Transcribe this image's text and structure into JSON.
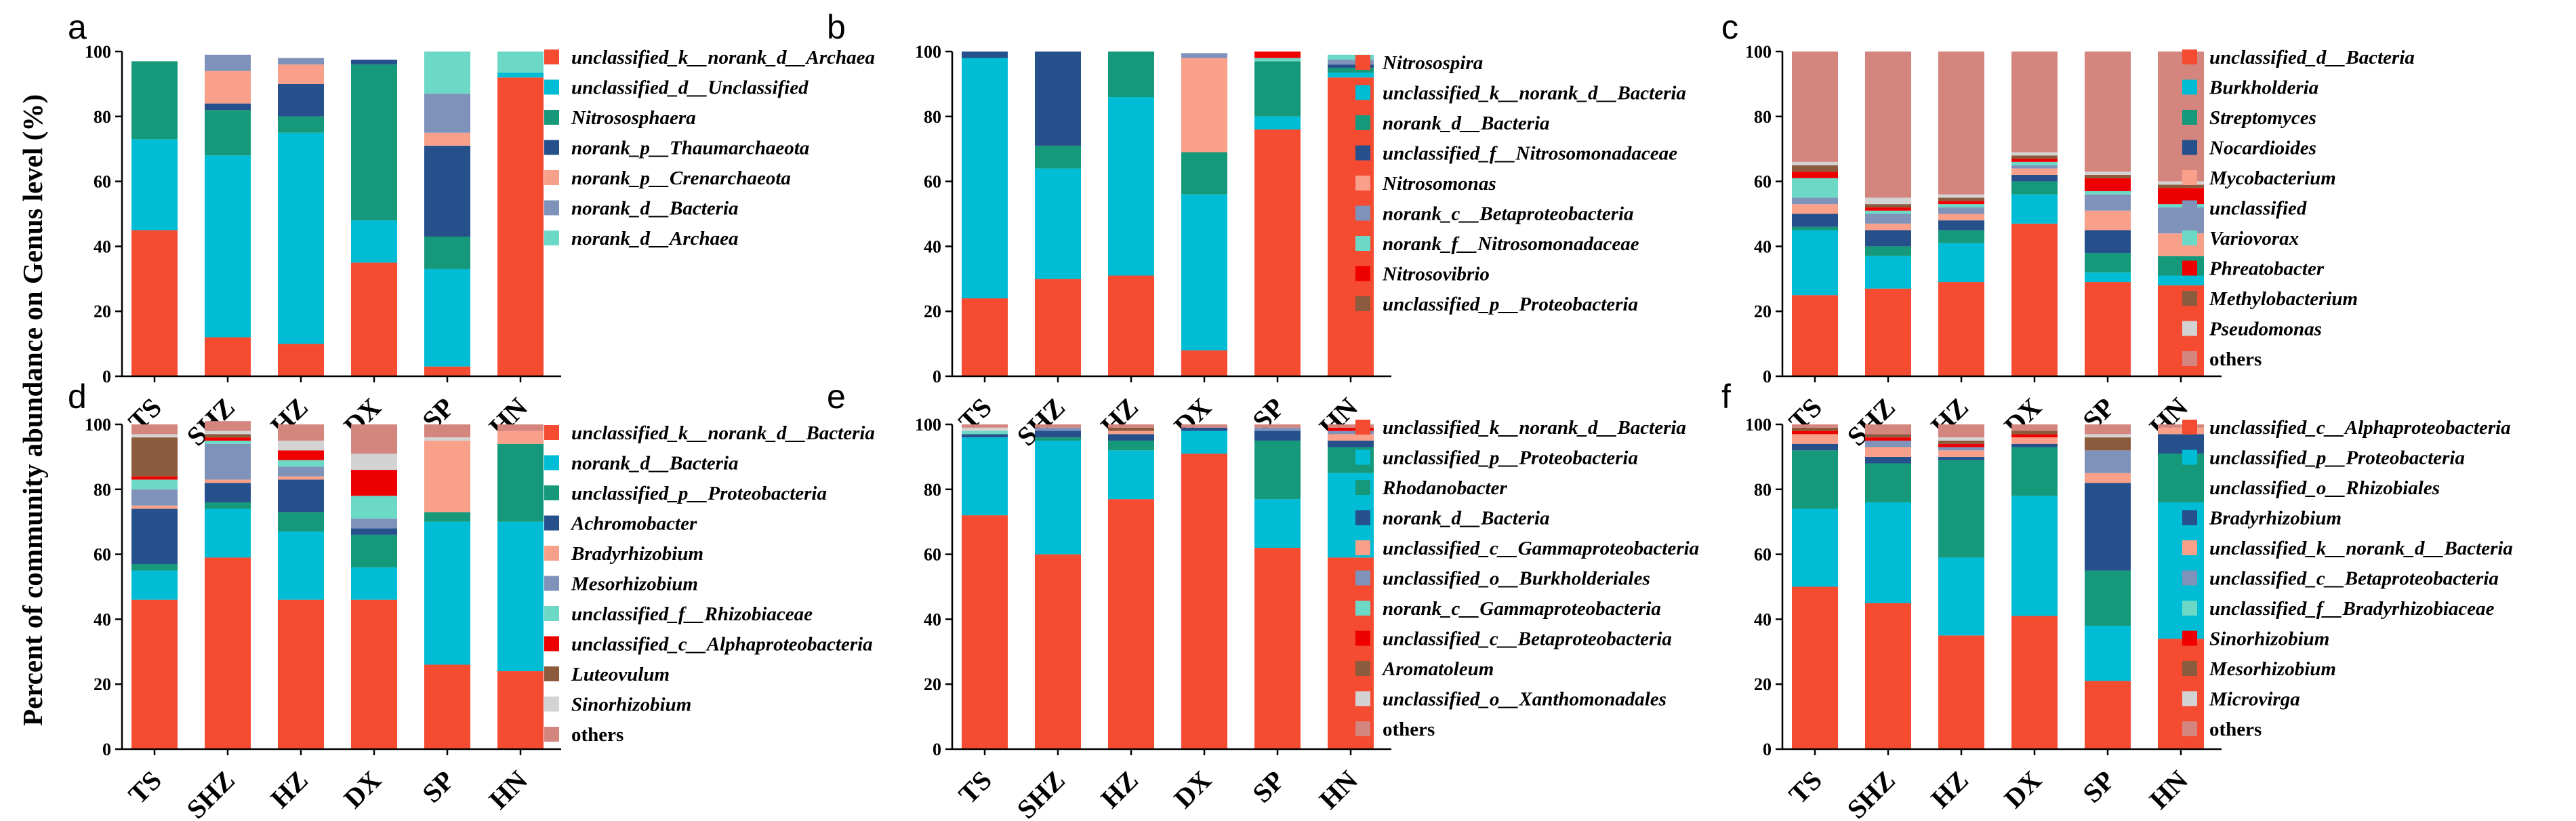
{
  "y_axis_label": "Percent of community abundance on Genus level (%)",
  "chart_data": [
    {
      "panel": "a",
      "type": "bar",
      "stacked": true,
      "categories": [
        "TS",
        "SHZ",
        "HZ",
        "DX",
        "SP",
        "HN"
      ],
      "ylim": [
        0,
        100
      ],
      "yticks": [
        0,
        20,
        40,
        60,
        80,
        100
      ],
      "series": [
        {
          "name": "unclassified_k__norank_d__Archaea",
          "color": "#f44b31",
          "values": [
            45,
            12,
            10,
            35,
            3,
            92
          ]
        },
        {
          "name": "unclassified_d__Unclassified",
          "color": "#00bcd4",
          "values": [
            28,
            56,
            65,
            13,
            30,
            1.5
          ]
        },
        {
          "name": "Nitrososphaera",
          "color": "#15997a",
          "values": [
            24,
            14,
            5,
            48,
            10,
            0
          ]
        },
        {
          "name": "norank_p__Thaumarchaeota",
          "color": "#25508b",
          "values": [
            0,
            2,
            10,
            1.5,
            28,
            0
          ]
        },
        {
          "name": "norank_p__Crenarchaeota",
          "color": "#f9a08a",
          "values": [
            0,
            10,
            6,
            0,
            4,
            0
          ]
        },
        {
          "name": "norank_d__Bacteria",
          "color": "#7f92b9",
          "values": [
            0,
            5,
            2,
            0,
            12,
            0
          ]
        },
        {
          "name": "norank_d__Archaea",
          "color": "#6cd8c6",
          "values": [
            0,
            0,
            0,
            0,
            13,
            6.5
          ]
        }
      ]
    },
    {
      "panel": "b",
      "type": "bar",
      "stacked": true,
      "categories": [
        "TS",
        "SHZ",
        "HZ",
        "DX",
        "SP",
        "HN"
      ],
      "ylim": [
        0,
        100
      ],
      "yticks": [
        0,
        20,
        40,
        60,
        80,
        100
      ],
      "series": [
        {
          "name": "Nitrosospira",
          "color": "#f44b31",
          "values": [
            24,
            30,
            31,
            8,
            76,
            92
          ]
        },
        {
          "name": "unclassified_k__norank_d__Bacteria",
          "color": "#00bcd4",
          "values": [
            74,
            34,
            55,
            48,
            4,
            1.5
          ]
        },
        {
          "name": "norank_d__Bacteria",
          "color": "#15997a",
          "values": [
            0,
            7,
            14,
            13,
            17,
            1.5
          ]
        },
        {
          "name": "unclassified_f__Nitrosomonadaceae",
          "color": "#25508b",
          "values": [
            2,
            29,
            0,
            0,
            0,
            1
          ]
        },
        {
          "name": "Nitrosomonas",
          "color": "#f9a08a",
          "values": [
            0,
            0,
            0,
            29,
            0,
            0
          ]
        },
        {
          "name": "norank_c__Betaproteobacteria",
          "color": "#7f92b9",
          "values": [
            0,
            0,
            0,
            1.5,
            0,
            1.5
          ]
        },
        {
          "name": "norank_f__Nitrosomonadaceae",
          "color": "#6cd8c6",
          "values": [
            0,
            0,
            0,
            0,
            1,
            1.5
          ]
        },
        {
          "name": "Nitrosovibrio",
          "color": "#ee0000",
          "values": [
            0,
            0,
            0,
            0,
            2,
            0
          ]
        },
        {
          "name": "unclassified_p__Proteobacteria",
          "color": "#8c5a3c",
          "values": [
            0,
            0,
            0,
            0,
            0,
            0
          ]
        }
      ]
    },
    {
      "panel": "c",
      "type": "bar",
      "stacked": true,
      "categories": [
        "TS",
        "SHZ",
        "HZ",
        "DX",
        "SP",
        "HN"
      ],
      "ylim": [
        0,
        100
      ],
      "yticks": [
        0,
        20,
        40,
        60,
        80,
        100
      ],
      "series": [
        {
          "name": "unclassified_d__Bacteria",
          "color": "#f44b31",
          "values": [
            25,
            27,
            29,
            47,
            29,
            28
          ]
        },
        {
          "name": "Burkholderia",
          "color": "#00bcd4",
          "values": [
            20,
            10,
            12,
            9,
            3,
            3
          ]
        },
        {
          "name": "Streptomyces",
          "color": "#15997a",
          "values": [
            1,
            3,
            4,
            4,
            6,
            6
          ]
        },
        {
          "name": "Nocardioides",
          "color": "#25508b",
          "values": [
            4,
            5,
            3,
            2,
            7,
            0
          ]
        },
        {
          "name": "Mycobacterium",
          "color": "#f9a08a",
          "values": [
            3,
            2,
            2,
            2,
            6,
            7
          ]
        },
        {
          "name": "unclassified",
          "color": "#7f92b9",
          "values": [
            2,
            3,
            2,
            1,
            5,
            8
          ]
        },
        {
          "name": "Variovorax",
          "color": "#6cd8c6",
          "values": [
            6,
            1,
            1,
            1,
            1,
            1
          ]
        },
        {
          "name": "Phreatobacter",
          "color": "#ee0000",
          "values": [
            2,
            1,
            1,
            1,
            4,
            5
          ]
        },
        {
          "name": "Methylobacterium",
          "color": "#8c5a3c",
          "values": [
            2,
            1,
            1,
            1,
            1,
            1
          ]
        },
        {
          "name": "Pseudomonas",
          "color": "#d3d3d3",
          "values": [
            1,
            2,
            1,
            1,
            1,
            1
          ]
        },
        {
          "name": "others",
          "color": "#d4857e",
          "values": [
            34,
            45,
            44,
            31,
            37,
            40
          ]
        }
      ]
    },
    {
      "panel": "d",
      "type": "bar",
      "stacked": true,
      "categories": [
        "TS",
        "SHZ",
        "HZ",
        "DX",
        "SP",
        "HN"
      ],
      "ylim": [
        0,
        100
      ],
      "yticks": [
        0,
        20,
        40,
        60,
        80,
        100
      ],
      "series": [
        {
          "name": "unclassified_k__norank_d__Bacteria",
          "color": "#f44b31",
          "values": [
            46,
            59,
            46,
            46,
            26,
            24
          ]
        },
        {
          "name": "norank_d__Bacteria",
          "color": "#00bcd4",
          "values": [
            9,
            15,
            21,
            10,
            44,
            46
          ]
        },
        {
          "name": "unclassified_p__Proteobacteria",
          "color": "#15997a",
          "values": [
            2,
            2,
            6,
            10,
            3,
            24
          ]
        },
        {
          "name": "Achromobacter",
          "color": "#25508b",
          "values": [
            17,
            6,
            10,
            2,
            0,
            0
          ]
        },
        {
          "name": "Bradyrhizobium",
          "color": "#f9a08a",
          "values": [
            1,
            1,
            1,
            0,
            22,
            4
          ]
        },
        {
          "name": "Mesorhizobium",
          "color": "#7f92b9",
          "values": [
            5,
            11,
            3,
            3,
            0,
            0
          ]
        },
        {
          "name": "unclassified_f__Rhizobiaceae",
          "color": "#6cd8c6",
          "values": [
            3,
            1,
            2,
            7,
            0,
            0
          ]
        },
        {
          "name": "unclassified_c__Alphaproteobacteria",
          "color": "#ee0000",
          "values": [
            1,
            1,
            3,
            8,
            0,
            0
          ]
        },
        {
          "name": "Luteovulum",
          "color": "#8c5a3c",
          "values": [
            12,
            1,
            0,
            0,
            0,
            0
          ]
        },
        {
          "name": "Sinorhizobium",
          "color": "#d3d3d3",
          "values": [
            1,
            1,
            3,
            5,
            1,
            0
          ]
        },
        {
          "name": "others",
          "color": "#d4857e",
          "values": [
            3,
            3,
            5,
            9,
            4,
            2
          ]
        }
      ]
    },
    {
      "panel": "e",
      "type": "bar",
      "stacked": true,
      "categories": [
        "TS",
        "SHZ",
        "HZ",
        "DX",
        "SP",
        "HN"
      ],
      "ylim": [
        0,
        100
      ],
      "yticks": [
        0,
        20,
        40,
        60,
        80,
        100
      ],
      "series": [
        {
          "name": "unclassified_k__norank_d__Bacteria",
          "color": "#f44b31",
          "values": [
            72,
            60,
            77,
            91,
            62,
            59
          ]
        },
        {
          "name": "unclassified_p__Proteobacteria",
          "color": "#00bcd4",
          "values": [
            24,
            35,
            15,
            7,
            15,
            26
          ]
        },
        {
          "name": "Rhodanobacter",
          "color": "#15997a",
          "values": [
            0,
            1,
            3,
            0,
            18,
            8
          ]
        },
        {
          "name": "norank_d__Bacteria",
          "color": "#25508b",
          "values": [
            1,
            2,
            2,
            1,
            3,
            2
          ]
        },
        {
          "name": "unclassified_c__Gammaproteobacteria",
          "color": "#f9a08a",
          "values": [
            0,
            0,
            1,
            0,
            0,
            2
          ]
        },
        {
          "name": "unclassified_o__Burkholderiales",
          "color": "#7f92b9",
          "values": [
            0,
            1,
            0,
            0,
            1,
            1
          ]
        },
        {
          "name": "norank_c__Gammaproteobacteria",
          "color": "#6cd8c6",
          "values": [
            1,
            0,
            0,
            0,
            0,
            0
          ]
        },
        {
          "name": "unclassified_c__Betaproteobacteria",
          "color": "#ee0000",
          "values": [
            0,
            0,
            0,
            0,
            0,
            1
          ]
        },
        {
          "name": "Aromatoleum",
          "color": "#8c5a3c",
          "values": [
            0,
            0,
            1,
            0,
            0,
            0
          ]
        },
        {
          "name": "unclassified_o__Xanthomonadales",
          "color": "#d3d3d3",
          "values": [
            1,
            0,
            0,
            0,
            0,
            0
          ]
        },
        {
          "name": "others",
          "color": "#d4857e",
          "values": [
            1,
            1,
            1,
            1,
            1,
            1
          ]
        }
      ]
    },
    {
      "panel": "f",
      "type": "bar",
      "stacked": true,
      "categories": [
        "TS",
        "SHZ",
        "HZ",
        "DX",
        "SP",
        "HN"
      ],
      "ylim": [
        0,
        100
      ],
      "yticks": [
        0,
        20,
        40,
        60,
        80,
        100
      ],
      "series": [
        {
          "name": "unclassified_c__Alphaproteobacteria",
          "color": "#f44b31",
          "values": [
            50,
            45,
            35,
            41,
            21,
            34
          ]
        },
        {
          "name": "unclassified_p__Proteobacteria",
          "color": "#00bcd4",
          "values": [
            24,
            31,
            24,
            37,
            17,
            42
          ]
        },
        {
          "name": "unclassified_o__Rhizobiales",
          "color": "#15997a",
          "values": [
            18,
            12,
            30,
            15,
            17,
            15
          ]
        },
        {
          "name": "Bradyrhizobium",
          "color": "#25508b",
          "values": [
            2,
            2,
            1,
            1,
            27,
            6
          ]
        },
        {
          "name": "unclassified_k__norank_d__Bacteria",
          "color": "#f9a08a",
          "values": [
            3,
            3,
            2,
            2,
            3,
            2
          ]
        },
        {
          "name": "unclassified_c__Betaproteobacteria",
          "color": "#7f92b9",
          "values": [
            0,
            2,
            1,
            0,
            7,
            0
          ]
        },
        {
          "name": "unclassified_f__Bradyrhizobiaceae",
          "color": "#6cd8c6",
          "values": [
            0,
            0,
            0,
            0,
            0,
            0
          ]
        },
        {
          "name": "Sinorhizobium",
          "color": "#ee0000",
          "values": [
            1,
            1,
            1,
            1,
            0,
            0
          ]
        },
        {
          "name": "Mesorhizobium",
          "color": "#8c5a3c",
          "values": [
            1,
            1,
            1,
            1,
            4,
            0
          ]
        },
        {
          "name": "Microvirga",
          "color": "#d3d3d3",
          "values": [
            0,
            0,
            1,
            0,
            1,
            0
          ]
        },
        {
          "name": "others",
          "color": "#d4857e",
          "values": [
            1,
            3,
            4,
            2,
            3,
            1
          ]
        }
      ]
    }
  ]
}
